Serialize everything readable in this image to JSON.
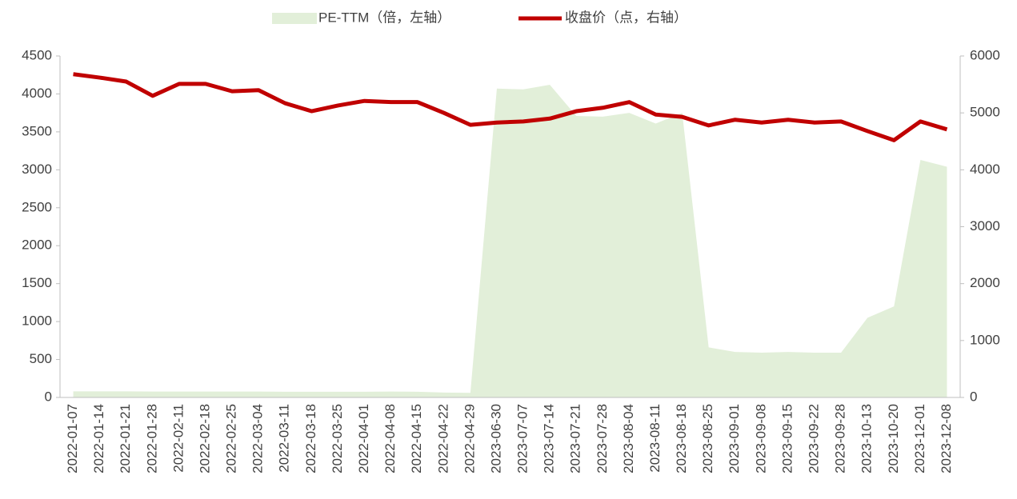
{
  "chart_data": {
    "type": "area_line",
    "categories": [
      "2022-01-07",
      "2022-01-14",
      "2022-01-21",
      "2022-01-28",
      "2022-02-11",
      "2022-02-18",
      "2022-02-25",
      "2022-03-04",
      "2022-03-11",
      "2022-03-18",
      "2022-03-25",
      "2022-04-01",
      "2022-04-08",
      "2022-04-15",
      "2022-04-22",
      "2022-04-29",
      "2023-06-30",
      "2023-07-07",
      "2023-07-14",
      "2023-07-21",
      "2023-07-28",
      "2023-08-04",
      "2023-08-11",
      "2023-08-18",
      "2023-08-25",
      "2023-09-01",
      "2023-09-08",
      "2023-09-15",
      "2023-09-22",
      "2023-09-28",
      "2023-10-13",
      "2023-10-20",
      "2023-12-01",
      "2023-12-08"
    ],
    "series": [
      {
        "name": "PE-TTM（倍，左轴）",
        "type": "area",
        "color": "#e2efd9",
        "axis": "y",
        "values": [
          80,
          80,
          80,
          78,
          78,
          78,
          78,
          78,
          75,
          75,
          75,
          75,
          78,
          75,
          65,
          60,
          4070,
          4060,
          4120,
          3710,
          3700,
          3750,
          3610,
          3750,
          660,
          600,
          590,
          600,
          590,
          590,
          1050,
          1200,
          3130,
          3040
        ]
      },
      {
        "name": "收盘价（点，右轴）",
        "type": "line",
        "color": "#c00000",
        "axis": "y2",
        "values": [
          5680,
          5620,
          5550,
          5300,
          5510,
          5510,
          5380,
          5400,
          5170,
          5030,
          5130,
          5210,
          5190,
          5190,
          5000,
          4790,
          4830,
          4850,
          4900,
          5030,
          5090,
          5190,
          4970,
          4930,
          4780,
          4880,
          4830,
          4880,
          4830,
          4850,
          4680,
          4520,
          4850,
          4710
        ]
      }
    ],
    "ylim": [
      0,
      4500
    ],
    "yticks": [
      0,
      500,
      1000,
      1500,
      2000,
      2500,
      3000,
      3500,
      4000,
      4500
    ],
    "y2lim": [
      0,
      6000
    ],
    "y2ticks": [
      0,
      1000,
      2000,
      3000,
      4000,
      5000,
      6000
    ],
    "legend": "top"
  }
}
